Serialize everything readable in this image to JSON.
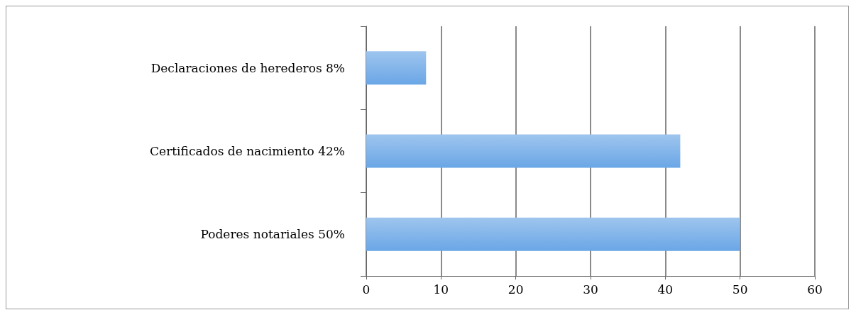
{
  "chart_data": {
    "type": "bar",
    "orientation": "horizontal",
    "categories": [
      "Declaraciones de herederos 8%",
      "Certificados de nacimiento 42%",
      "Poderes notariales 50%"
    ],
    "values": [
      8,
      42,
      50
    ],
    "color": "#6aa6e6",
    "xlim": [
      0,
      60
    ],
    "xticks": [
      0,
      10,
      20,
      30,
      40,
      50,
      60
    ],
    "grid": "x"
  }
}
